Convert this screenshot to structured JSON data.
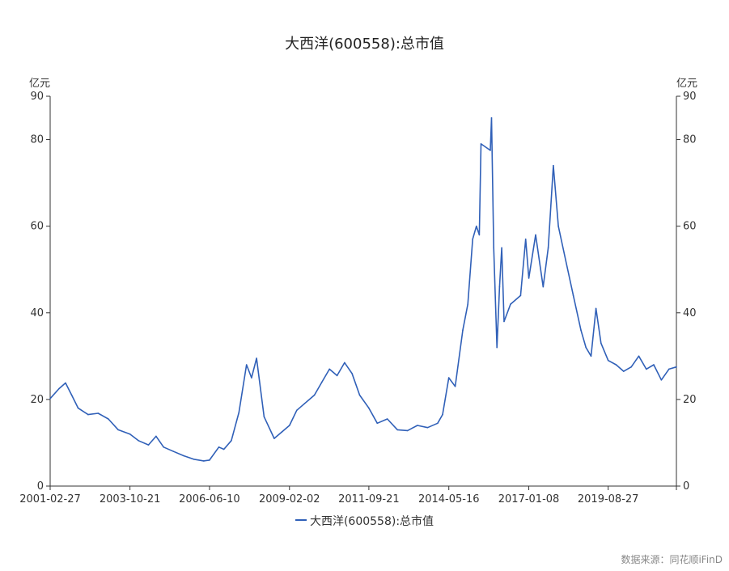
{
  "chart_data": {
    "type": "line",
    "title": "大西洋(600558):总市值",
    "y_unit_left": "亿元",
    "y_unit_right": "亿元",
    "ylim": [
      0,
      90
    ],
    "yticks_left": [
      0,
      20,
      40,
      60,
      80,
      90
    ],
    "yticks_right": [
      0,
      20,
      40,
      60,
      80,
      90
    ],
    "x_tick_labels": [
      "2001-02-27",
      "2003-10-21",
      "2006-06-10",
      "2009-02-02",
      "2011-09-21",
      "2014-05-16",
      "2017-01-08",
      "2019-08-27"
    ],
    "x_range": [
      "2001-02-27",
      "2021-11-30"
    ],
    "grid": false,
    "legend_position": "bottom",
    "series": [
      {
        "name": "大西洋(600558):总市值",
        "color": "#3060b8",
        "points": [
          [
            "2001-02-27",
            20.2
          ],
          [
            "2001-06-15",
            22.5
          ],
          [
            "2001-09-01",
            23.8
          ],
          [
            "2001-11-15",
            21.0
          ],
          [
            "2002-02-01",
            18.0
          ],
          [
            "2002-06-01",
            16.5
          ],
          [
            "2002-10-01",
            16.8
          ],
          [
            "2003-02-01",
            15.5
          ],
          [
            "2003-06-01",
            13.0
          ],
          [
            "2003-10-21",
            12.0
          ],
          [
            "2004-02-01",
            10.5
          ],
          [
            "2004-06-01",
            9.5
          ],
          [
            "2004-09-01",
            11.5
          ],
          [
            "2004-12-01",
            9.0
          ],
          [
            "2005-04-01",
            8.0
          ],
          [
            "2005-08-01",
            7.0
          ],
          [
            "2005-12-01",
            6.2
          ],
          [
            "2006-04-01",
            5.8
          ],
          [
            "2006-06-10",
            6.0
          ],
          [
            "2006-10-01",
            9.0
          ],
          [
            "2006-12-01",
            8.5
          ],
          [
            "2007-03-01",
            10.5
          ],
          [
            "2007-06-01",
            17.0
          ],
          [
            "2007-09-01",
            28.0
          ],
          [
            "2007-11-01",
            25.0
          ],
          [
            "2008-01-01",
            29.5
          ],
          [
            "2008-04-01",
            16.0
          ],
          [
            "2008-08-01",
            11.0
          ],
          [
            "2008-11-01",
            12.5
          ],
          [
            "2009-02-02",
            14.0
          ],
          [
            "2009-05-01",
            17.5
          ],
          [
            "2009-08-01",
            19.0
          ],
          [
            "2009-12-01",
            21.0
          ],
          [
            "2010-03-01",
            24.0
          ],
          [
            "2010-06-01",
            27.0
          ],
          [
            "2010-09-01",
            25.5
          ],
          [
            "2010-12-01",
            28.5
          ],
          [
            "2011-03-01",
            26.0
          ],
          [
            "2011-06-01",
            21.0
          ],
          [
            "2011-09-21",
            18.0
          ],
          [
            "2012-01-01",
            14.5
          ],
          [
            "2012-05-01",
            15.5
          ],
          [
            "2012-09-01",
            13.0
          ],
          [
            "2013-01-01",
            12.8
          ],
          [
            "2013-05-01",
            14.0
          ],
          [
            "2013-09-01",
            13.5
          ],
          [
            "2014-01-01",
            14.5
          ],
          [
            "2014-03-01",
            16.5
          ],
          [
            "2014-05-16",
            25.0
          ],
          [
            "2014-08-01",
            23.0
          ],
          [
            "2014-11-01",
            36.0
          ],
          [
            "2015-01-01",
            42.0
          ],
          [
            "2015-03-01",
            57.0
          ],
          [
            "2015-04-15",
            60.0
          ],
          [
            "2015-05-20",
            58.0
          ],
          [
            "2015-06-10",
            79.0
          ],
          [
            "2015-09-30",
            77.5
          ],
          [
            "2015-10-15",
            85.0
          ],
          [
            "2015-11-10",
            55.0
          ],
          [
            "2015-12-20",
            32.0
          ],
          [
            "2016-01-20",
            46.0
          ],
          [
            "2016-02-15",
            55.0
          ],
          [
            "2016-03-15",
            38.0
          ],
          [
            "2016-06-01",
            42.0
          ],
          [
            "2016-10-01",
            44.0
          ],
          [
            "2016-12-01",
            57.0
          ],
          [
            "2017-01-08",
            48.0
          ],
          [
            "2017-04-01",
            58.0
          ],
          [
            "2017-07-01",
            46.0
          ],
          [
            "2017-09-01",
            55.0
          ],
          [
            "2017-11-01",
            74.0
          ],
          [
            "2018-01-01",
            60.0
          ],
          [
            "2018-04-01",
            52.0
          ],
          [
            "2018-07-01",
            44.0
          ],
          [
            "2018-10-01",
            36.0
          ],
          [
            "2018-12-01",
            32.0
          ],
          [
            "2019-02-01",
            30.0
          ],
          [
            "2019-04-01",
            41.0
          ],
          [
            "2019-06-01",
            33.0
          ],
          [
            "2019-08-27",
            29.0
          ],
          [
            "2019-12-01",
            28.0
          ],
          [
            "2020-03-01",
            26.5
          ],
          [
            "2020-06-01",
            27.5
          ],
          [
            "2020-09-01",
            30.0
          ],
          [
            "2020-12-01",
            27.0
          ],
          [
            "2021-03-01",
            28.0
          ],
          [
            "2021-06-01",
            24.5
          ],
          [
            "2021-09-01",
            27.0
          ],
          [
            "2021-11-30",
            27.5
          ]
        ]
      }
    ]
  },
  "source_text": "数据来源：同花顺iFinD"
}
